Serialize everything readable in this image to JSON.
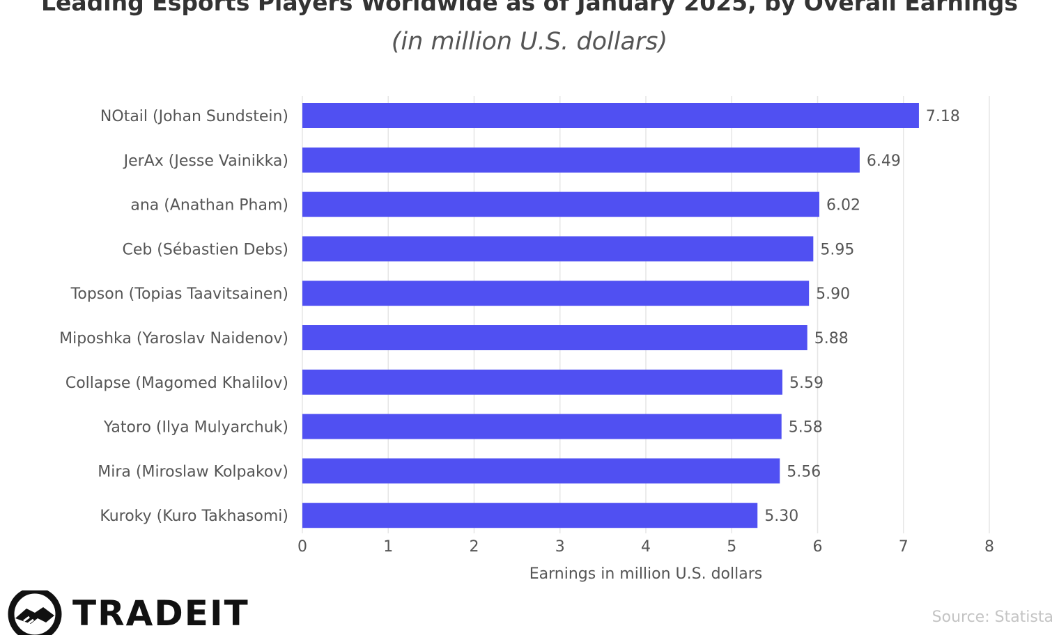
{
  "chart_data": {
    "type": "bar",
    "orientation": "horizontal",
    "title": "Leading Esports Players Worldwide as of January 2025, by Overall Earnings",
    "subtitle": "(in million U.S. dollars)",
    "xlabel": "Earnings in million U.S. dollars",
    "ylabel": "",
    "categories": [
      "NOtail (Johan Sundstein)",
      "JerAx (Jesse Vainikka)",
      "ana (Anathan Pham)",
      "Ceb (Sébastien Debs)",
      "Topson (Topias Taavitsainen)",
      "Miposhka (Yaroslav Naidenov)",
      "Collapse (Magomed Khalilov)",
      "Yatoro (Ilya Mulyarchuk)",
      "Mira (Miroslaw Kolpakov)",
      "Kuroky (Kuro Takhasomi)"
    ],
    "values": [
      7.18,
      6.49,
      6.02,
      5.95,
      5.9,
      5.88,
      5.59,
      5.58,
      5.56,
      5.3
    ],
    "value_labels": [
      "7.18",
      "6.49",
      "6.02",
      "5.95",
      "5.90",
      "5.88",
      "5.59",
      "5.58",
      "5.56",
      "5.30"
    ],
    "xlim": [
      0,
      8
    ],
    "xticks": [
      "0",
      "1",
      "2",
      "3",
      "4",
      "5",
      "6",
      "7",
      "8"
    ],
    "grid": true,
    "bar_color": "#5050f2"
  },
  "footer": {
    "logo_text": "TRADEIT",
    "logo_icon": "handshake-icon",
    "source": "Source: Statista"
  }
}
